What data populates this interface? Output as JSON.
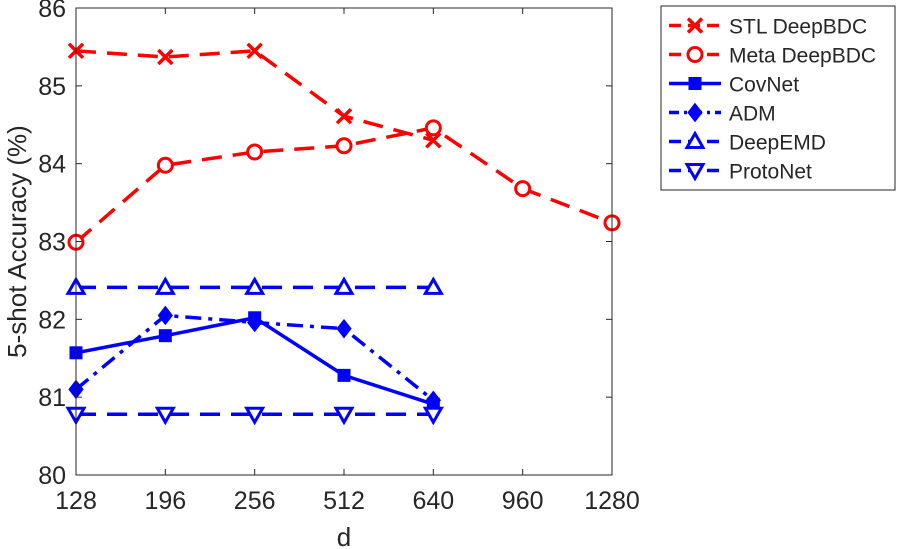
{
  "chart_data": {
    "type": "line",
    "title": "",
    "xlabel": "d",
    "ylabel": "5-shot Accuracy (%)",
    "categories": [
      "128",
      "196",
      "256",
      "512",
      "640",
      "960",
      "1280"
    ],
    "ylim": [
      80,
      86
    ],
    "yticks": [
      80,
      81,
      82,
      83,
      84,
      85,
      86
    ],
    "grid": false,
    "legend_position": "outside-right-top",
    "series": [
      {
        "name": "STL DeepBDC",
        "color": "#ff0000",
        "line": "dashed",
        "marker": "x",
        "values": [
          85.45,
          85.37,
          85.45,
          84.61,
          84.3,
          null,
          null
        ]
      },
      {
        "name": "Meta DeepBDC",
        "color": "#ff0000",
        "line": "dashed",
        "marker": "circle",
        "values": [
          82.99,
          83.98,
          84.15,
          84.23,
          84.46,
          83.68,
          83.24
        ]
      },
      {
        "name": "CovNet",
        "color": "#0000ff",
        "line": "solid",
        "marker": "square",
        "values": [
          81.57,
          81.79,
          82.02,
          81.28,
          80.91,
          null,
          null
        ]
      },
      {
        "name": "ADM",
        "color": "#0000ff",
        "line": "dashdot",
        "marker": "diamond",
        "values": [
          81.1,
          82.05,
          81.96,
          81.88,
          80.96,
          null,
          null
        ]
      },
      {
        "name": "DeepEMD",
        "color": "#0000ff",
        "line": "dashed",
        "marker": "triangle-up",
        "values": [
          82.41,
          82.41,
          82.41,
          82.41,
          82.41,
          null,
          null
        ]
      },
      {
        "name": "ProtoNet",
        "color": "#0000ff",
        "line": "dashed",
        "marker": "triangle-down",
        "values": [
          80.78,
          80.78,
          80.78,
          80.78,
          80.78,
          null,
          null
        ]
      }
    ]
  }
}
